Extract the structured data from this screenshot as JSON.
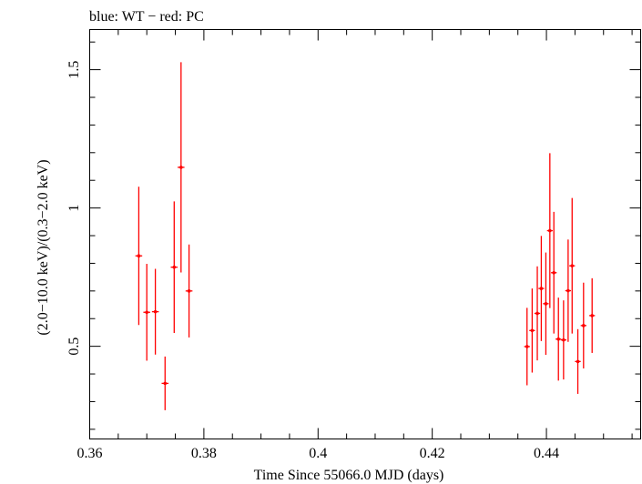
{
  "chart_data": {
    "type": "scatter",
    "title": "blue: WT − red: PC",
    "xlabel": "Time Since 55066.0 MJD (days)",
    "ylabel": "(2.0−10.0 keV)/(0.3−2.0 keV)",
    "xlim": [
      0.36,
      0.4565
    ],
    "ylim": [
      0.165,
      1.645
    ],
    "xticks": [
      0.36,
      0.38,
      0.4,
      0.42,
      0.44
    ],
    "xtick_labels": [
      "0.36",
      "0.38",
      "0.4",
      "0.42",
      "0.44"
    ],
    "xtick_minor_step": 0.005,
    "yticks": [
      0.5,
      1,
      1.5
    ],
    "ytick_labels": [
      "0.5",
      "1",
      "1.5"
    ],
    "ytick_minor_step": 0.1,
    "grid": false,
    "series": [
      {
        "name": "PC",
        "color": "#ff0000",
        "points": [
          {
            "x": 0.3686,
            "xerr": 0.0006,
            "y": 0.827,
            "yerr": 0.25
          },
          {
            "x": 0.37,
            "xerr": 0.0006,
            "y": 0.623,
            "yerr": 0.175
          },
          {
            "x": 0.3715,
            "xerr": 0.0006,
            "y": 0.625,
            "yerr": 0.155
          },
          {
            "x": 0.3732,
            "xerr": 0.0006,
            "y": 0.366,
            "yerr": 0.097
          },
          {
            "x": 0.3748,
            "xerr": 0.0006,
            "y": 0.786,
            "yerr": 0.238
          },
          {
            "x": 0.376,
            "xerr": 0.0006,
            "y": 1.147,
            "yerr": 0.38
          },
          {
            "x": 0.3774,
            "xerr": 0.0006,
            "y": 0.7,
            "yerr": 0.168
          },
          {
            "x": 0.4366,
            "xerr": 0.0005,
            "y": 0.499,
            "yerr": 0.14
          },
          {
            "x": 0.4375,
            "xerr": 0.0005,
            "y": 0.557,
            "yerr": 0.152
          },
          {
            "x": 0.4384,
            "xerr": 0.0005,
            "y": 0.619,
            "yerr": 0.17
          },
          {
            "x": 0.4391,
            "xerr": 0.0005,
            "y": 0.709,
            "yerr": 0.19
          },
          {
            "x": 0.4399,
            "xerr": 0.0005,
            "y": 0.654,
            "yerr": 0.185
          },
          {
            "x": 0.4406,
            "xerr": 0.0005,
            "y": 0.918,
            "yerr": 0.28
          },
          {
            "x": 0.4413,
            "xerr": 0.0005,
            "y": 0.766,
            "yerr": 0.22
          },
          {
            "x": 0.4421,
            "xerr": 0.0005,
            "y": 0.526,
            "yerr": 0.15
          },
          {
            "x": 0.443,
            "xerr": 0.0005,
            "y": 0.523,
            "yerr": 0.143
          },
          {
            "x": 0.4438,
            "xerr": 0.0005,
            "y": 0.701,
            "yerr": 0.185
          },
          {
            "x": 0.4445,
            "xerr": 0.0005,
            "y": 0.791,
            "yerr": 0.245
          },
          {
            "x": 0.4455,
            "xerr": 0.0005,
            "y": 0.445,
            "yerr": 0.117
          },
          {
            "x": 0.4465,
            "xerr": 0.0005,
            "y": 0.575,
            "yerr": 0.155
          },
          {
            "x": 0.448,
            "xerr": 0.0005,
            "y": 0.611,
            "yerr": 0.135
          }
        ]
      }
    ]
  }
}
